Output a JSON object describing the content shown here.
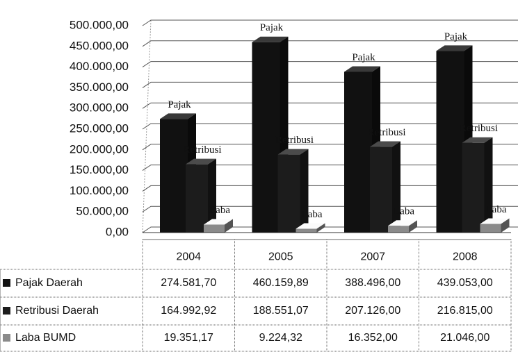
{
  "chart_data": {
    "type": "bar",
    "categories": [
      "2004",
      "2005",
      "2007",
      "2008"
    ],
    "series": [
      {
        "name": "Pajak Daerah",
        "label": "Pajak",
        "color": "#111111",
        "values": [
          274581.7,
          460159.89,
          388496.0,
          439053.0
        ],
        "value_labels": [
          "274.581,70",
          "460.159,89",
          "388.496,00",
          "439.053,00"
        ]
      },
      {
        "name": "Retribusi Daerah",
        "label": "Retribusi",
        "color": "#1c1c1c",
        "values": [
          164992.92,
          188551.07,
          207126.0,
          216815.0
        ],
        "value_labels": [
          "164.992,92",
          "188.551,07",
          "207.126,00",
          "216.815,00"
        ]
      },
      {
        "name": "Laba BUMD",
        "label": "Laba",
        "color": "#8a8a8a",
        "values": [
          19351.17,
          9224.32,
          16352.0,
          21046.0
        ],
        "value_labels": [
          "19.351,17",
          "9.224,32",
          "16.352,00",
          "21.046,00"
        ]
      }
    ],
    "ylim": [
      0,
      500000
    ],
    "yticks": [
      {
        "value": 0,
        "label": "0,00"
      },
      {
        "value": 50000,
        "label": "50.000,00"
      },
      {
        "value": 100000,
        "label": "100.000,00"
      },
      {
        "value": 150000,
        "label": "150.000,00"
      },
      {
        "value": 200000,
        "label": "200.000,00"
      },
      {
        "value": 250000,
        "label": "250.000,00"
      },
      {
        "value": 300000,
        "label": "300.000,00"
      },
      {
        "value": 350000,
        "label": "350.000,00"
      },
      {
        "value": 400000,
        "label": "400.000,00"
      },
      {
        "value": 450000,
        "label": "450.000,00"
      },
      {
        "value": 500000,
        "label": "500.000,00"
      }
    ],
    "grid": true
  }
}
